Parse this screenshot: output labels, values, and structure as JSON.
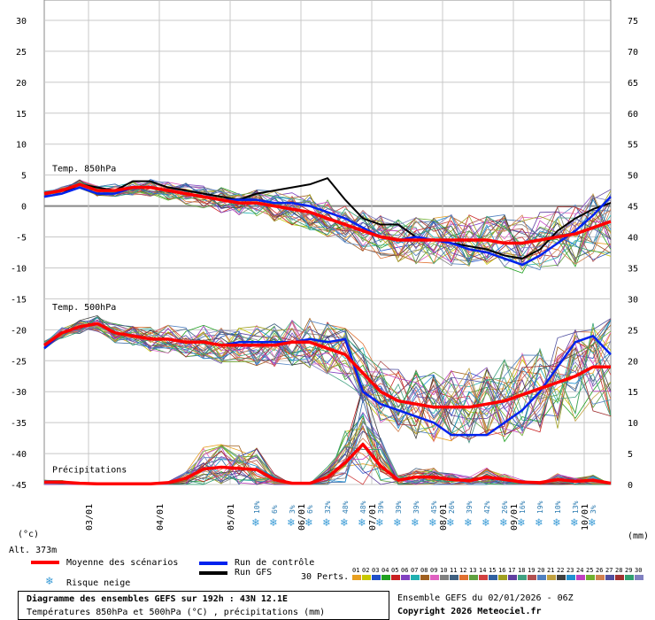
{
  "chart_data": {
    "type": "line",
    "title": "Diagramme des ensembles GEFS sur 192h : 43N 12.1E",
    "subtitle": "Températures 850hPa et 500hPa (°C) , précipitations (mm)",
    "ylabel_left": "(°c)",
    "ylabel_right": "(mm)",
    "altitude": "Alt. 373m",
    "yleft_ticks": [
      30,
      25,
      20,
      15,
      10,
      5,
      0,
      -5,
      -10,
      -15,
      -20,
      -25,
      -30,
      -35,
      -40,
      -45
    ],
    "yright_ticks": [
      75,
      70,
      65,
      60,
      55,
      50,
      45,
      40,
      35,
      30,
      25,
      20,
      15,
      10,
      5,
      0
    ],
    "ylim_left": [
      -45,
      30
    ],
    "x_range_hours": [
      0,
      192
    ],
    "x_ticks": [
      {
        "h": 15,
        "label": "03/01"
      },
      {
        "h": 39,
        "label": "04/01"
      },
      {
        "h": 63,
        "label": "05/01"
      },
      {
        "h": 87,
        "label": "06/01"
      },
      {
        "h": 111,
        "label": "07/01"
      },
      {
        "h": 135,
        "label": "08/01"
      },
      {
        "h": 159,
        "label": "09/01"
      },
      {
        "h": 183,
        "label": "10/01"
      }
    ],
    "panel_labels": {
      "t850": "Temp. 850hPa",
      "t500": "Temp. 500hPa",
      "precip": "Précipitations"
    },
    "snow_risk": [
      {
        "h": 72,
        "pct": "10%"
      },
      {
        "h": 78,
        "pct": "6%"
      },
      {
        "h": 84,
        "pct": "3%"
      },
      {
        "h": 90,
        "pct": "6%"
      },
      {
        "h": 96,
        "pct": "32%"
      },
      {
        "h": 102,
        "pct": "48%"
      },
      {
        "h": 108,
        "pct": "48%"
      },
      {
        "h": 114,
        "pct": "39%"
      },
      {
        "h": 120,
        "pct": "39%"
      },
      {
        "h": 126,
        "pct": "39%"
      },
      {
        "h": 132,
        "pct": "45%"
      },
      {
        "h": 138,
        "pct": "26%"
      },
      {
        "h": 144,
        "pct": "39%"
      },
      {
        "h": 150,
        "pct": "42%"
      },
      {
        "h": 156,
        "pct": "26%"
      },
      {
        "h": 162,
        "pct": "16%"
      },
      {
        "h": 168,
        "pct": "19%"
      },
      {
        "h": 174,
        "pct": "10%"
      },
      {
        "h": 180,
        "pct": "13%"
      },
      {
        "h": 186,
        "pct": "3%"
      }
    ],
    "t850": {
      "hours": [
        0,
        6,
        12,
        18,
        24,
        30,
        36,
        42,
        48,
        54,
        60,
        66,
        72,
        78,
        84,
        90,
        96,
        102,
        108,
        114,
        120,
        126,
        132,
        138,
        144,
        150,
        156,
        162,
        168,
        174,
        180,
        186,
        192
      ],
      "mean": [
        2,
        2.5,
        3.5,
        2.5,
        2.5,
        3,
        3,
        2.5,
        2,
        1.5,
        1,
        0.5,
        0.5,
        0,
        -0.5,
        -1,
        -2,
        -3,
        -4,
        -5,
        -5.5,
        -5.5,
        -5.5,
        -5.5,
        -5.5,
        -5.5,
        -6,
        -6,
        -5.5,
        -5,
        -4.5,
        -3.5,
        -2.5
      ],
      "control": [
        1.5,
        2,
        3,
        2,
        2,
        3,
        3,
        2.5,
        2,
        1.5,
        1,
        1,
        1,
        0.5,
        0.5,
        0,
        -1,
        -2,
        -3.5,
        -5,
        -5.5,
        -5,
        -5.5,
        -6,
        -7,
        -7.5,
        -8.5,
        -9.5,
        -8,
        -6,
        -4,
        -1.5,
        1.5
      ],
      "gfs": [
        1.5,
        2,
        3.5,
        3,
        2.5,
        4,
        4,
        3,
        2.5,
        2,
        1.5,
        1,
        2,
        2.5,
        3,
        3.5,
        4.5,
        1,
        -2,
        -3,
        -3,
        -5,
        -5.5,
        -6,
        -6.5,
        -7,
        -8,
        -8.5,
        -7,
        -4,
        -2,
        -0.5,
        0.5
      ]
    },
    "t500": {
      "hours": [
        0,
        6,
        12,
        18,
        24,
        30,
        36,
        42,
        48,
        54,
        60,
        66,
        72,
        78,
        84,
        90,
        96,
        102,
        108,
        114,
        120,
        126,
        132,
        138,
        144,
        150,
        156,
        162,
        168,
        174,
        180,
        186,
        192
      ],
      "mean": [
        -22.5,
        -20.5,
        -19.5,
        -19,
        -20.5,
        -21,
        -21.5,
        -21.5,
        -22,
        -22,
        -22.5,
        -22.5,
        -22.5,
        -22.5,
        -22,
        -22,
        -23,
        -24,
        -27,
        -30,
        -31.5,
        -32,
        -32.5,
        -32.5,
        -32.5,
        -32,
        -31.5,
        -30.5,
        -29.5,
        -28.5,
        -27.5,
        -26,
        -26
      ],
      "control": [
        -23,
        -20.5,
        -19.5,
        -19,
        -20.5,
        -21,
        -21.5,
        -21.5,
        -22,
        -22,
        -22.5,
        -22,
        -22,
        -22,
        -22,
        -21.5,
        -22,
        -21.5,
        -30,
        -32,
        -33,
        -34,
        -35,
        -37,
        -37,
        -37,
        -35,
        -33,
        -30,
        -26,
        -22,
        -21,
        -24
      ]
    },
    "precip_mm": {
      "hours": [
        0,
        6,
        12,
        18,
        24,
        30,
        36,
        42,
        48,
        54,
        60,
        66,
        72,
        78,
        84,
        90,
        96,
        102,
        108,
        114,
        120,
        126,
        132,
        138,
        144,
        150,
        156,
        162,
        168,
        174,
        180,
        186,
        192
      ],
      "mean": [
        0.4,
        0.4,
        0.2,
        0.1,
        0.1,
        0.1,
        0.1,
        0.3,
        1,
        2.5,
        2.8,
        2.6,
        2.4,
        0.8,
        0.2,
        0.2,
        1.2,
        3.5,
        6.5,
        3,
        0.7,
        1.2,
        1.2,
        0.8,
        0.6,
        1.2,
        0.8,
        0.4,
        0.3,
        0.8,
        0.5,
        0.7,
        0.2
      ]
    },
    "legend": {
      "mean": "Moyenne des scénarios",
      "control": "Run de contrôle",
      "gfs": "Run GFS",
      "snow": "Risque neige",
      "perts": "30 Perts."
    },
    "pert_colors": [
      "#e8a020",
      "#c8c800",
      "#2050c8",
      "#20a020",
      "#c82020",
      "#8040c0",
      "#20b0b0",
      "#a06020",
      "#e060c0",
      "#808080",
      "#406080",
      "#e07030",
      "#60a040",
      "#d04040",
      "#3060a0",
      "#a0a020",
      "#6040a0",
      "#40a080",
      "#b05050",
      "#5080c0",
      "#c0a040",
      "#404040",
      "#2090d0",
      "#c040c0",
      "#70b030",
      "#d08050",
      "#5050a0",
      "#a03030",
      "#30a070",
      "#8080c0"
    ],
    "pert_labels": [
      "01",
      "02",
      "03",
      "04",
      "05",
      "06",
      "07",
      "08",
      "09",
      "10",
      "11",
      "12",
      "13",
      "14",
      "15",
      "16",
      "17",
      "18",
      "19",
      "20",
      "21",
      "22",
      "23",
      "24",
      "25",
      "26",
      "27",
      "28",
      "29",
      "30"
    ],
    "colors": {
      "mean": "#ff0000",
      "control": "#0022ee",
      "gfs": "#000000",
      "snow": "#3a9bd6",
      "grid": "#c8c8c8"
    },
    "info": {
      "run": "Ensemble GEFS du 02/01/2026 - 06Z",
      "copyright": "Copyright 2026 Meteociel.fr"
    }
  }
}
